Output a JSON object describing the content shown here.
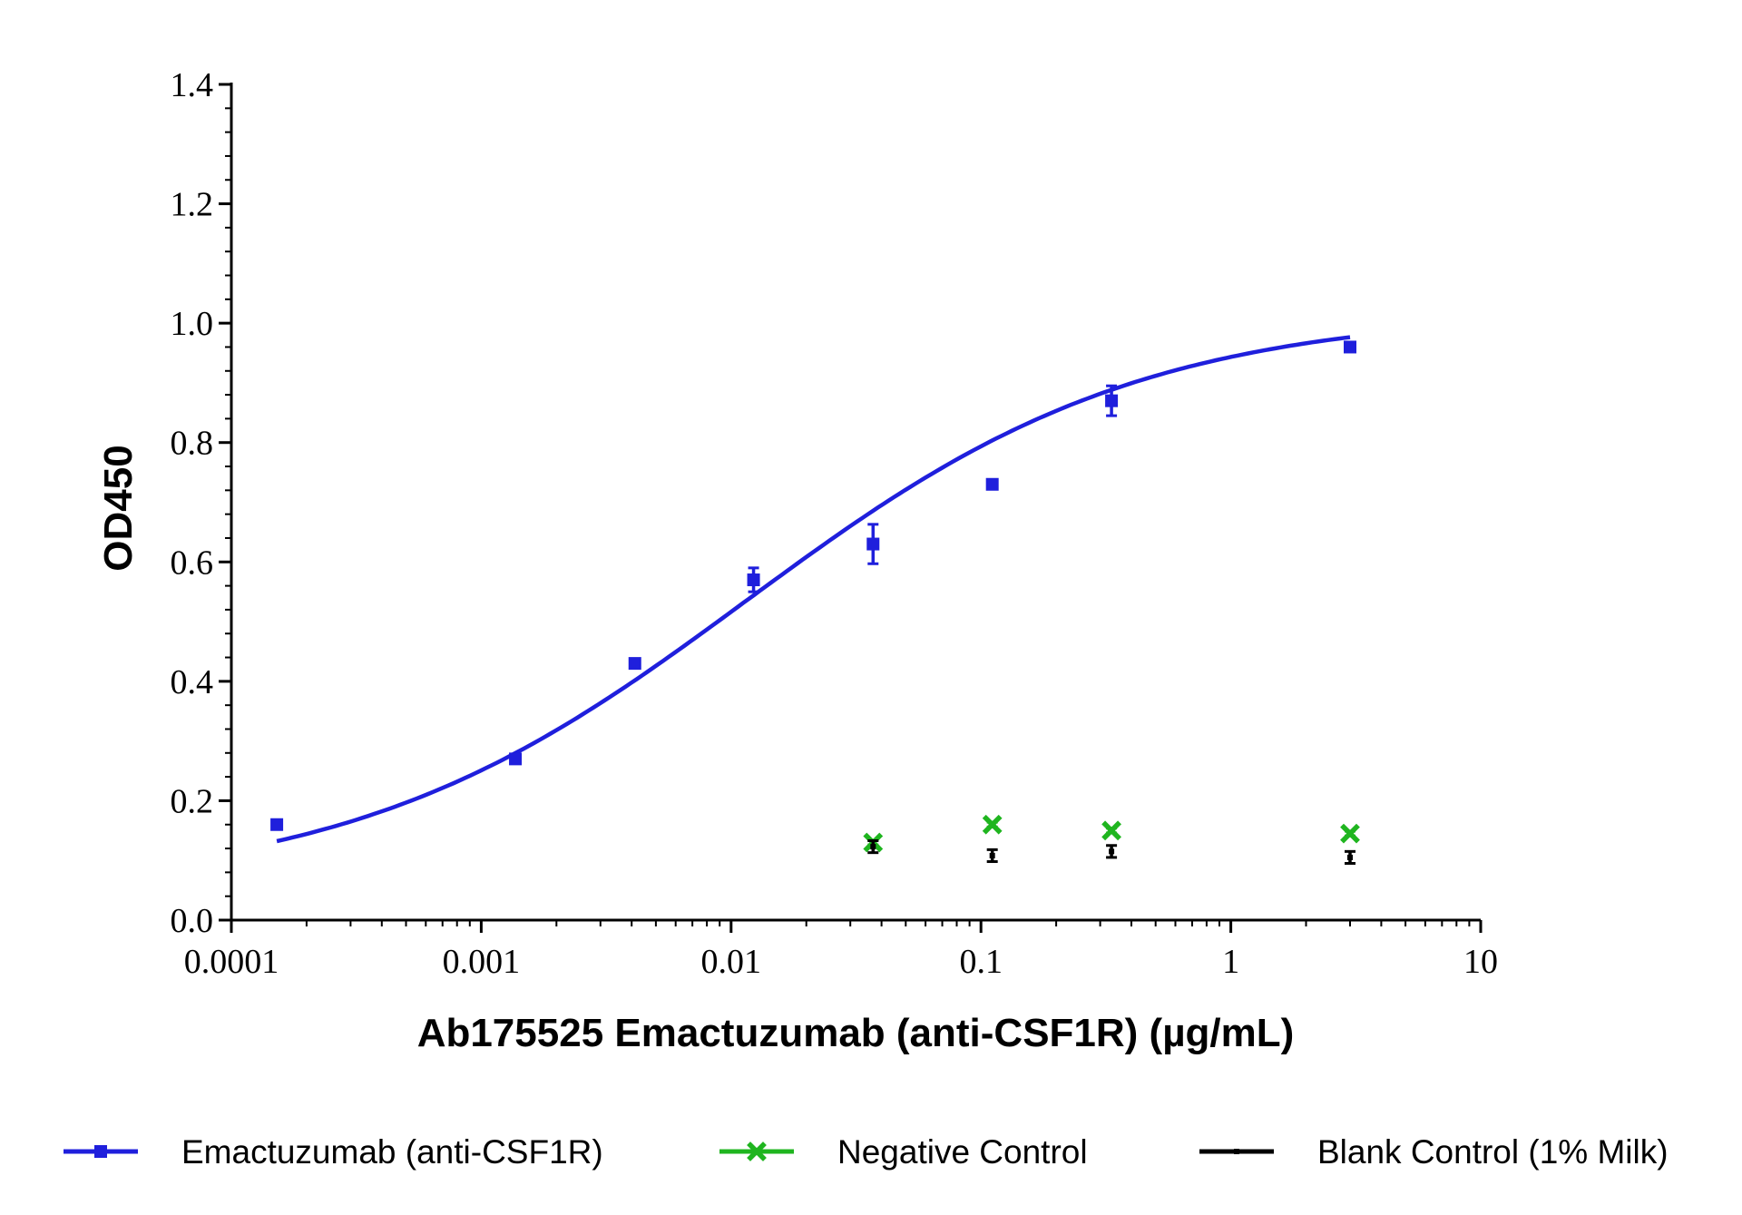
{
  "chart_data": {
    "type": "scatter",
    "xlabel": "Ab175525 Emactuzumab (anti-CSF1R) (µg/mL)",
    "ylabel": "OD450",
    "x_scale": "log",
    "xlim": [
      0.0001,
      10
    ],
    "ylim": [
      0,
      1.4
    ],
    "x_ticks": [
      0.0001,
      0.001,
      0.01,
      0.1,
      1,
      10
    ],
    "x_tick_labels": [
      "0.0001",
      "0.001",
      "0.01",
      "0.1",
      "1",
      "10"
    ],
    "y_ticks": [
      0,
      0.2,
      0.4,
      0.6,
      0.8,
      1.0,
      1.2,
      1.4
    ],
    "y_tick_labels": [
      "0.0",
      "0.2",
      "0.4",
      "0.6",
      "0.8",
      "1.0",
      "1.2",
      "1.4"
    ],
    "grid": false,
    "legend_position": "bottom",
    "series": [
      {
        "name": "Emactuzumab (anti-CSF1R)",
        "color": "#1f1fdc",
        "marker": "square",
        "fit": "4PL",
        "fit_params": {
          "bottom": 0.05,
          "top": 1.02,
          "ec50": 0.0115,
          "hill": 0.55
        },
        "x": [
          0.000152,
          0.00137,
          0.00412,
          0.0123,
          0.037,
          0.111,
          0.333,
          3.0
        ],
        "y": [
          0.16,
          0.27,
          0.43,
          0.57,
          0.63,
          0.73,
          0.87,
          0.96
        ],
        "err": [
          0.005,
          0.005,
          0.007,
          0.02,
          0.033,
          0.006,
          0.025,
          0.006
        ]
      },
      {
        "name": "Negative Control",
        "color": "#1fb51f",
        "marker": "x",
        "x": [
          0.037,
          0.111,
          0.333,
          3.0
        ],
        "y": [
          0.13,
          0.16,
          0.15,
          0.145
        ],
        "err": [
          0.004,
          0.004,
          0.004,
          0.004
        ]
      },
      {
        "name": "Blank Control (1% Milk)",
        "color": "#000000",
        "marker": "dash",
        "x": [
          0.037,
          0.111,
          0.333,
          3.0
        ],
        "y": [
          0.123,
          0.108,
          0.115,
          0.105
        ],
        "err": [
          0.01,
          0.01,
          0.01,
          0.01
        ]
      }
    ]
  }
}
